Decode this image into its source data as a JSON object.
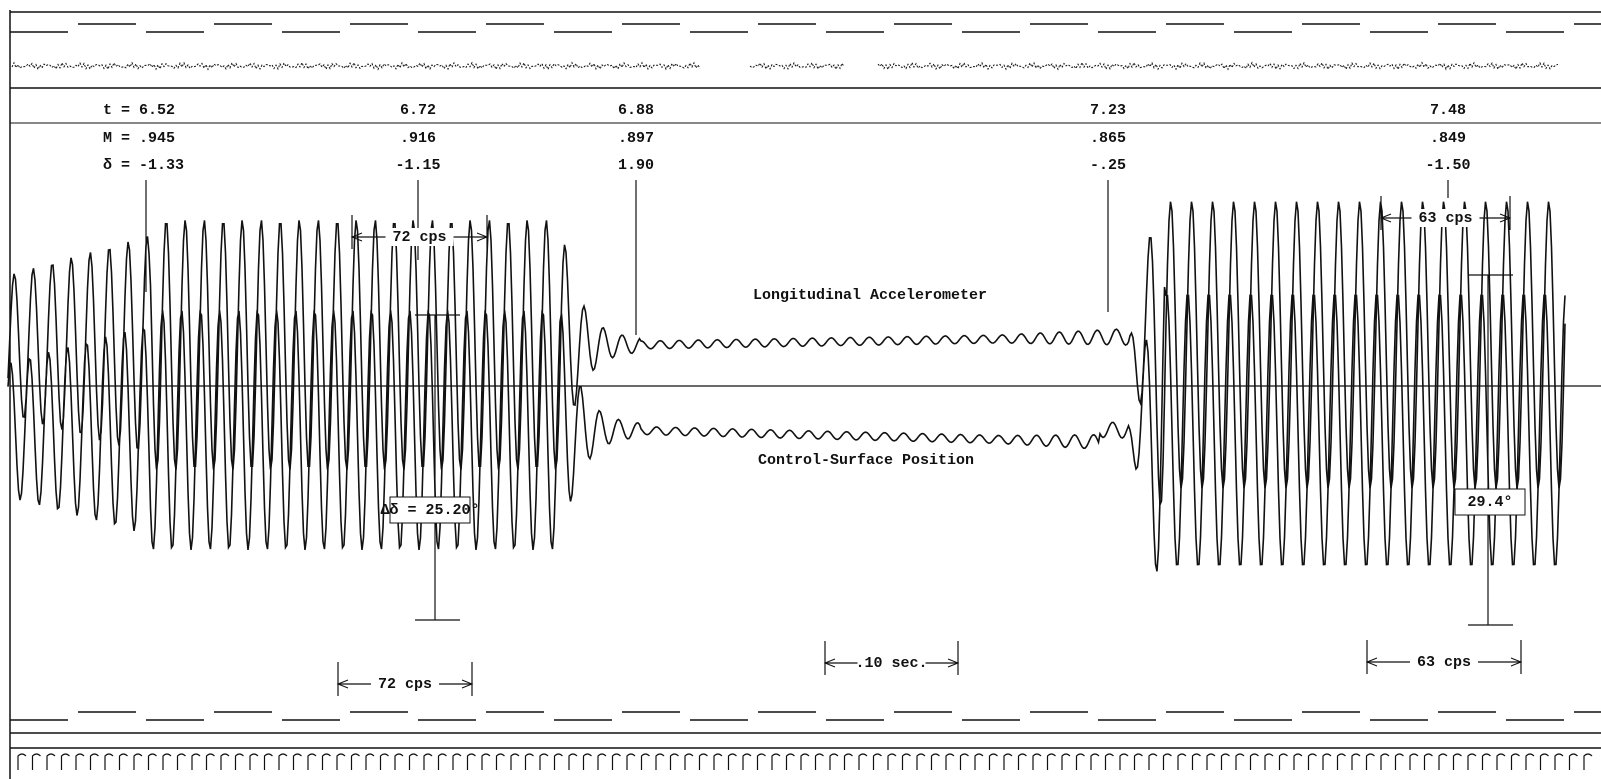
{
  "readings": [
    {
      "t": "t = 6.52",
      "mach": "M = .945",
      "deflection": "δ = -1.33"
    },
    {
      "t": "6.72",
      "mach": ".916",
      "deflection": "-1.15"
    },
    {
      "t": "6.88",
      "mach": ".897",
      "deflection": "1.90"
    },
    {
      "t": "7.23",
      "mach": ".865",
      "deflection": "-.25"
    },
    {
      "t": "7.48",
      "mach": ".849",
      "deflection": "-1.50"
    }
  ],
  "traces": {
    "upper": "Longitudinal Accelerometer",
    "lower": "Control-Surface Position"
  },
  "frequency_marks": [
    "72 cps",
    "72 cps",
    "63 cps",
    "63 cps"
  ],
  "amplitude_marks": [
    "Δδ = 25.20°",
    "29.4°"
  ],
  "time_scale": ".10 sec."
}
